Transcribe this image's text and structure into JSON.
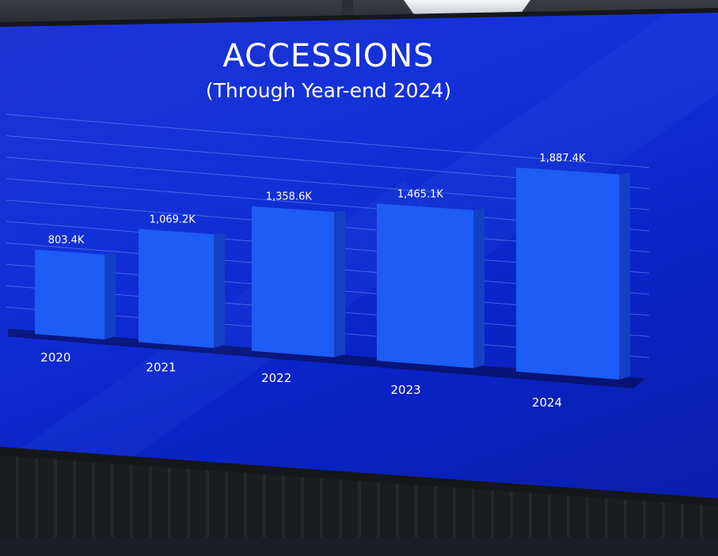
{
  "title": "ACCESSIONS",
  "subtitle": "(Through Year-end 2024)",
  "colors": {
    "background": "#1230d8",
    "bar_front": "#1d5cf5",
    "bar_side": "#1440c6",
    "text": "#ffffff"
  },
  "chart_data": {
    "type": "bar",
    "title": "ACCESSIONS",
    "subtitle": "(Through Year-end 2024)",
    "categories": [
      "2020",
      "2021",
      "2022",
      "2023",
      "2024"
    ],
    "values": [
      803.4,
      1069.2,
      1358.6,
      1465.1,
      1887.4
    ],
    "data_labels": [
      "803.4K",
      "1,069.2K",
      "1,358.6K",
      "1,465.1K",
      "1,887.4K"
    ],
    "unit": "K",
    "xlabel": "",
    "ylabel": "",
    "ylim": [
      0,
      2000
    ],
    "grid": true,
    "legend": "none"
  }
}
